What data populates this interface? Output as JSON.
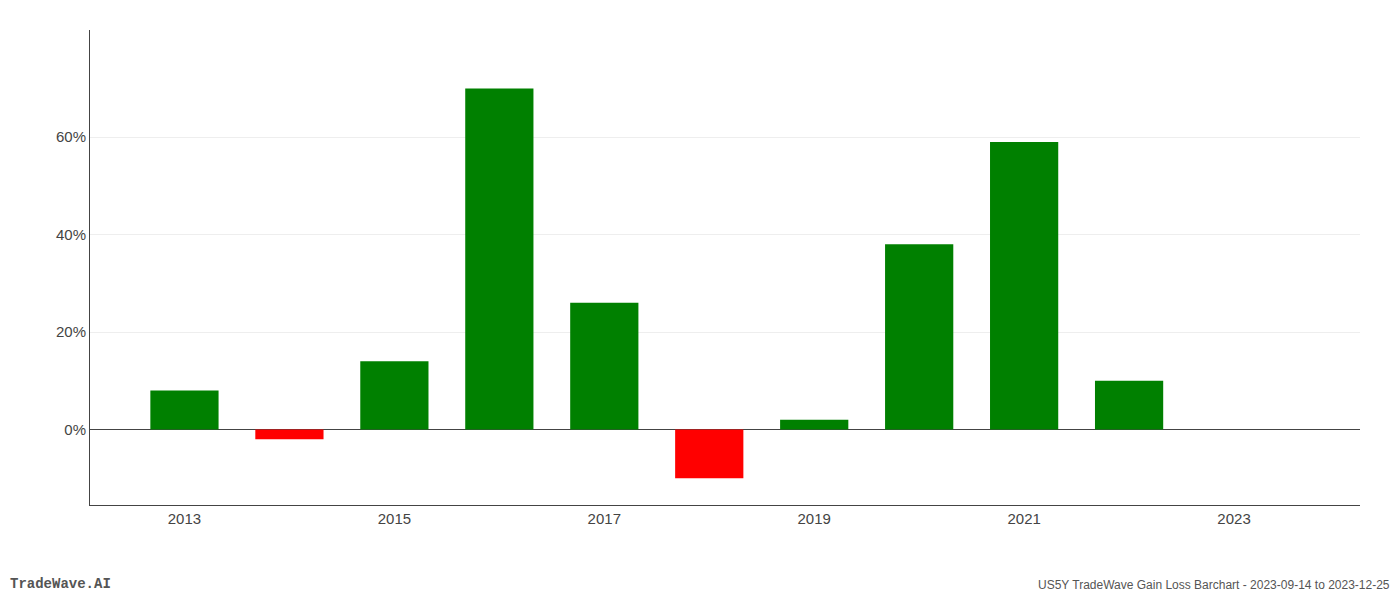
{
  "chart_data": {
    "type": "bar",
    "x": [
      2013,
      2014,
      2015,
      2016,
      2017,
      2018,
      2019,
      2020,
      2021,
      2022
    ],
    "values": [
      0.08,
      -0.02,
      0.14,
      0.7,
      0.26,
      -0.1,
      0.02,
      0.38,
      0.59,
      0.1
    ],
    "colors": [
      "#008000",
      "#ff0000",
      "#008000",
      "#008000",
      "#008000",
      "#ff0000",
      "#008000",
      "#008000",
      "#008000",
      "#008000"
    ],
    "xlim": [
      2012.1,
      2024.2
    ],
    "xticks": [
      2013,
      2015,
      2017,
      2019,
      2021,
      2023
    ],
    "ylim": [
      -0.155,
      0.82
    ],
    "yticks": [
      {
        "value": 0.0,
        "label": "0%"
      },
      {
        "value": 0.2,
        "label": "20%"
      },
      {
        "value": 0.4,
        "label": "40%"
      },
      {
        "value": 0.6,
        "label": "60%"
      }
    ],
    "grid": "y",
    "annotations": [
      {
        "text": "TradeWave.AI"
      },
      {
        "text": "US5Y TradeWave Gain Loss Barchart - 2023-09-14 to 2023-12-25"
      }
    ]
  }
}
